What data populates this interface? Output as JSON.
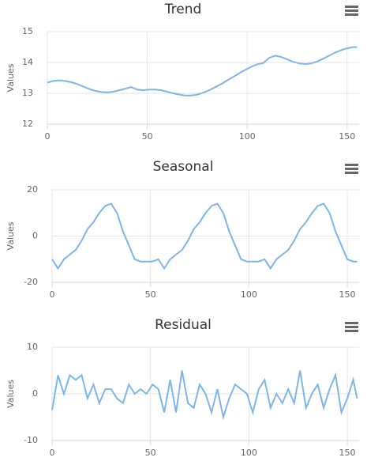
{
  "chart_data": [
    {
      "type": "line",
      "title": "Trend",
      "ylabel": "Values",
      "x": [
        0,
        3,
        6,
        9,
        12,
        15,
        18,
        21,
        24,
        27,
        30,
        33,
        36,
        39,
        42,
        45,
        48,
        51,
        54,
        57,
        60,
        63,
        66,
        69,
        72,
        75,
        78,
        81,
        84,
        87,
        90,
        93,
        96,
        99,
        102,
        105,
        108,
        111,
        114,
        117,
        120,
        123,
        126,
        129,
        132,
        135,
        138,
        141,
        144,
        147,
        150,
        153,
        155
      ],
      "values": [
        13.35,
        13.4,
        13.42,
        13.4,
        13.36,
        13.3,
        13.22,
        13.14,
        13.08,
        13.04,
        13.03,
        13.05,
        13.1,
        13.15,
        13.2,
        13.12,
        13.1,
        13.12,
        13.12,
        13.1,
        13.05,
        13.0,
        12.96,
        12.93,
        12.93,
        12.96,
        13.02,
        13.1,
        13.2,
        13.3,
        13.42,
        13.53,
        13.65,
        13.76,
        13.86,
        13.94,
        13.98,
        14.15,
        14.22,
        14.18,
        14.1,
        14.02,
        13.97,
        13.95,
        13.97,
        14.03,
        14.12,
        14.22,
        14.32,
        14.4,
        14.46,
        14.5,
        14.5
      ],
      "color": "#7cb5ec",
      "xlim": [
        0,
        156
      ],
      "xticks": [
        0,
        50,
        100,
        150
      ],
      "ylim": [
        12,
        15
      ],
      "yticks": [
        12,
        13,
        14,
        15
      ],
      "grid": true
    },
    {
      "type": "line",
      "title": "Seasonal",
      "ylabel": "Values",
      "x": [
        0,
        3,
        6,
        9,
        12,
        15,
        18,
        21,
        24,
        27,
        30,
        33,
        36,
        39,
        42,
        45,
        48,
        51,
        54,
        57,
        60,
        63,
        66,
        69,
        72,
        75,
        78,
        81,
        84,
        87,
        90,
        93,
        96,
        99,
        102,
        105,
        108,
        111,
        114,
        117,
        120,
        123,
        126,
        129,
        132,
        135,
        138,
        141,
        144,
        147,
        150,
        153,
        155
      ],
      "values": [
        -10,
        -14,
        -10,
        -8,
        -6,
        -2,
        3,
        6,
        10,
        13,
        14,
        10,
        2,
        -4,
        -10,
        -11,
        -11,
        -11,
        -10,
        -14,
        -10,
        -8,
        -6,
        -2,
        3,
        6,
        10,
        13,
        14,
        10,
        2,
        -4,
        -10,
        -11,
        -11,
        -11,
        -10,
        -14,
        -10,
        -8,
        -6,
        -2,
        3,
        6,
        10,
        13,
        14,
        10,
        2,
        -4,
        -10,
        -11,
        -11
      ],
      "color": "#7cb5ec",
      "xlim": [
        0,
        156
      ],
      "xticks": [
        0,
        50,
        100,
        150
      ],
      "ylim": [
        -20,
        20
      ],
      "yticks": [
        -20,
        0,
        20
      ],
      "grid": true
    },
    {
      "type": "line",
      "title": "Residual",
      "ylabel": "Values",
      "x": [
        0,
        3,
        6,
        9,
        12,
        15,
        18,
        21,
        24,
        27,
        30,
        33,
        36,
        39,
        42,
        45,
        48,
        51,
        54,
        57,
        60,
        63,
        66,
        69,
        72,
        75,
        78,
        81,
        84,
        87,
        90,
        93,
        96,
        99,
        102,
        105,
        108,
        111,
        114,
        117,
        120,
        123,
        126,
        129,
        132,
        135,
        138,
        141,
        144,
        147,
        150,
        153,
        155
      ],
      "values": [
        -3.5,
        4,
        0,
        4,
        3,
        4,
        -1,
        2,
        -2,
        1,
        1,
        -1,
        -2,
        2,
        0,
        1,
        0,
        2,
        1,
        -4,
        3,
        -4,
        5,
        -2,
        -3,
        2,
        0,
        -4,
        1,
        -5,
        -1,
        2,
        1,
        0,
        -4,
        1,
        3,
        -3,
        0,
        -2,
        1,
        -2,
        5,
        -3,
        0,
        2,
        -3,
        1,
        4,
        -4,
        -1,
        3,
        -1
      ],
      "color": "#7cb5ec",
      "xlim": [
        0,
        156
      ],
      "xticks": [
        0,
        50,
        100,
        150
      ],
      "ylim": [
        -10,
        10
      ],
      "yticks": [
        -10,
        0,
        10
      ],
      "grid": true
    }
  ]
}
